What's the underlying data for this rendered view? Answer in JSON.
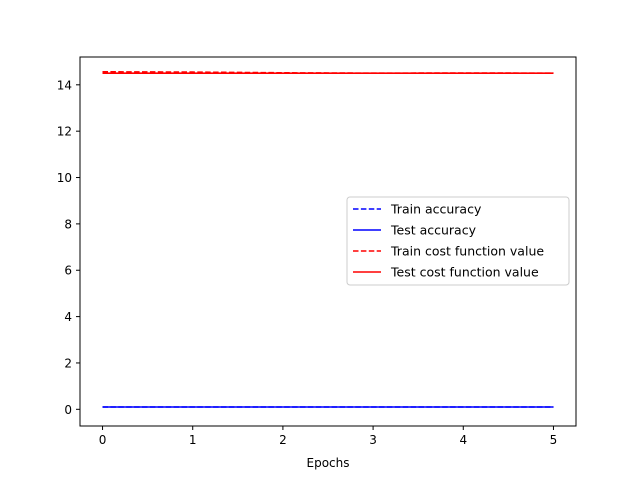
{
  "chart_data": {
    "type": "line",
    "title": "",
    "xlabel": "Epochs",
    "ylabel": "",
    "xlim": [
      -0.25,
      5.25
    ],
    "ylim": [
      -0.72,
      15.2
    ],
    "xticks": [
      0,
      1,
      2,
      3,
      4,
      5
    ],
    "yticks": [
      0,
      2,
      4,
      6,
      8,
      10,
      12,
      14
    ],
    "grid": false,
    "legend_position": "right",
    "x": [
      0,
      1,
      2,
      3,
      4,
      5
    ],
    "series": [
      {
        "name": "Train accuracy",
        "color": "#0000ff",
        "style": "dashed",
        "values": [
          0.1,
          0.1,
          0.1,
          0.1,
          0.1,
          0.1
        ]
      },
      {
        "name": "Test accuracy",
        "color": "#0000ff",
        "style": "solid",
        "values": [
          0.1,
          0.1,
          0.1,
          0.1,
          0.1,
          0.1
        ]
      },
      {
        "name": "Train cost function value",
        "color": "#ff0000",
        "style": "dashed",
        "values": [
          14.56,
          14.55,
          14.52,
          14.5,
          14.51,
          14.5
        ]
      },
      {
        "name": "Test cost function value",
        "color": "#ff0000",
        "style": "solid",
        "values": [
          14.5,
          14.5,
          14.5,
          14.5,
          14.5,
          14.5
        ]
      }
    ]
  }
}
